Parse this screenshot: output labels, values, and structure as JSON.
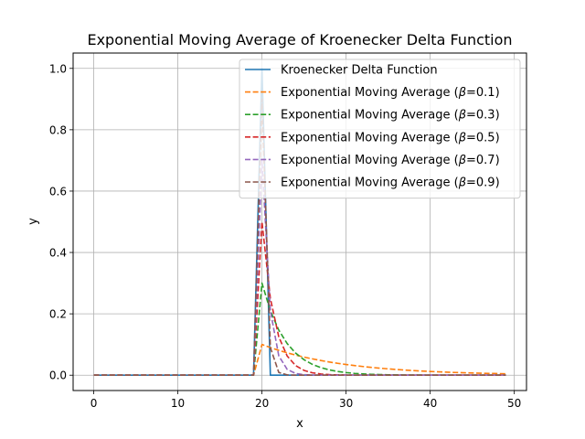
{
  "chart_data": {
    "type": "line",
    "title": "Exponential Moving Average of Kroenecker Delta Function",
    "xlabel": "x",
    "ylabel": "y",
    "xlim": [
      -2.45,
      51.45
    ],
    "ylim": [
      -0.05,
      1.05
    ],
    "x_ticks": [
      0,
      10,
      20,
      30,
      40,
      50
    ],
    "y_ticks": [
      0.0,
      0.2,
      0.4,
      0.6,
      0.8,
      1.0
    ],
    "x_tick_labels": [
      "0",
      "10",
      "20",
      "30",
      "40",
      "50"
    ],
    "y_tick_labels": [
      "0.0",
      "0.2",
      "0.4",
      "0.6",
      "0.8",
      "1.0"
    ],
    "grid": true,
    "legend_position": "top-right",
    "x": {
      "start": 0,
      "end": 49,
      "step": 1
    },
    "impulse_index": 20,
    "series": [
      {
        "name": "Kroenecker Delta Function",
        "kind": "delta",
        "color": "#1f77b4",
        "dash": "solid"
      },
      {
        "name": "Exponential Moving Average (",
        "beta_symbol": "β",
        "beta_suffix": "=0.1)",
        "kind": "ema",
        "beta": 0.1,
        "color": "#ff7f0e",
        "dash": "dashed"
      },
      {
        "name": "Exponential Moving Average (",
        "beta_symbol": "β",
        "beta_suffix": "=0.3)",
        "kind": "ema",
        "beta": 0.3,
        "color": "#2ca02c",
        "dash": "dashed"
      },
      {
        "name": "Exponential Moving Average (",
        "beta_symbol": "β",
        "beta_suffix": "=0.5)",
        "kind": "ema",
        "beta": 0.5,
        "color": "#d62728",
        "dash": "dashed"
      },
      {
        "name": "Exponential Moving Average (",
        "beta_symbol": "β",
        "beta_suffix": "=0.7)",
        "kind": "ema",
        "beta": 0.7,
        "color": "#9467bd",
        "dash": "dashed"
      },
      {
        "name": "Exponential Moving Average (",
        "beta_symbol": "β",
        "beta_suffix": "=0.9)",
        "kind": "ema",
        "beta": 0.9,
        "color": "#8c564b",
        "dash": "dashed"
      }
    ]
  }
}
